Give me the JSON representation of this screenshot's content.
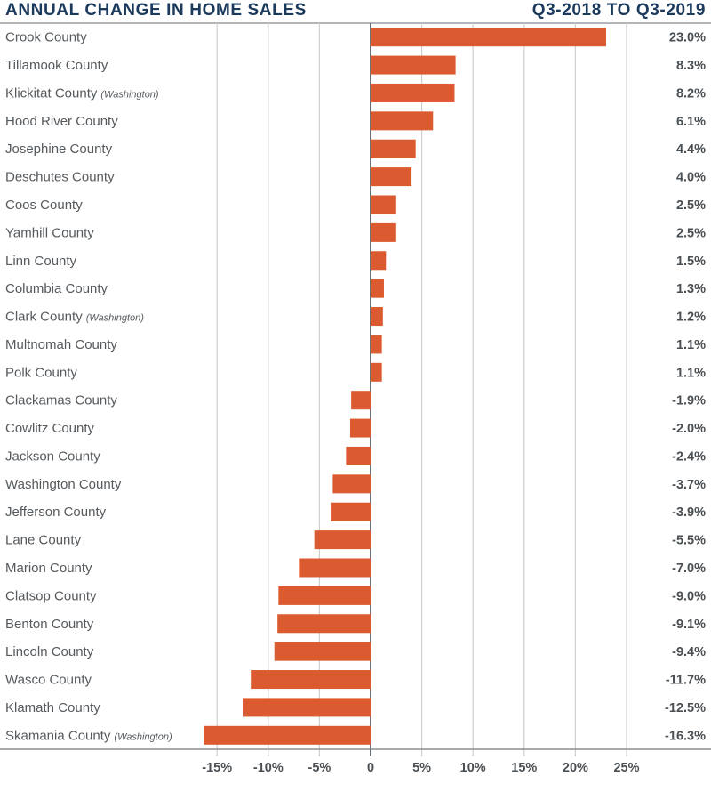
{
  "header": {
    "title": "ANNUAL CHANGE IN HOME SALES",
    "period": "Q3-2018 TO Q3-2019"
  },
  "colors": {
    "bar": "#db5a2f",
    "title": "#1b3a5c",
    "grid": "#cfcfcf",
    "axis": "#5c6166",
    "text": "#555a5e"
  },
  "chart_data": {
    "type": "bar",
    "orientation": "horizontal",
    "title": "ANNUAL CHANGE IN HOME SALES",
    "subtitle": "Q3-2018 TO Q3-2019",
    "xlabel": "",
    "ylabel": "",
    "xlim": [
      -20,
      27
    ],
    "x_ticks": [
      -15,
      -10,
      -5,
      0,
      5,
      10,
      15,
      20,
      25
    ],
    "x_tick_labels": [
      "-15%",
      "-10%",
      "-5%",
      "0",
      "5%",
      "10%",
      "15%",
      "20%",
      "25%"
    ],
    "grid": true,
    "legend": "none",
    "categories": [
      {
        "name": "Crook County",
        "note": ""
      },
      {
        "name": "Tillamook County",
        "note": ""
      },
      {
        "name": "Klickitat County",
        "note": "(Washington)"
      },
      {
        "name": "Hood River County",
        "note": ""
      },
      {
        "name": "Josephine County",
        "note": ""
      },
      {
        "name": "Deschutes County",
        "note": ""
      },
      {
        "name": "Coos County",
        "note": ""
      },
      {
        "name": "Yamhill County",
        "note": ""
      },
      {
        "name": "Linn County",
        "note": ""
      },
      {
        "name": "Columbia County",
        "note": ""
      },
      {
        "name": "Clark County",
        "note": "(Washington)"
      },
      {
        "name": "Multnomah County",
        "note": ""
      },
      {
        "name": "Polk County",
        "note": ""
      },
      {
        "name": "Clackamas County",
        "note": ""
      },
      {
        "name": "Cowlitz County",
        "note": ""
      },
      {
        "name": "Jackson County",
        "note": ""
      },
      {
        "name": "Washington County",
        "note": ""
      },
      {
        "name": "Jefferson County",
        "note": ""
      },
      {
        "name": "Lane County",
        "note": ""
      },
      {
        "name": "Marion County",
        "note": ""
      },
      {
        "name": "Clatsop County",
        "note": ""
      },
      {
        "name": "Benton County",
        "note": ""
      },
      {
        "name": "Lincoln County",
        "note": ""
      },
      {
        "name": "Wasco County",
        "note": ""
      },
      {
        "name": "Klamath County",
        "note": ""
      },
      {
        "name": "Skamania County",
        "note": "(Washington)"
      }
    ],
    "values": [
      23.0,
      8.3,
      8.2,
      6.1,
      4.4,
      4.0,
      2.5,
      2.5,
      1.5,
      1.3,
      1.2,
      1.1,
      1.1,
      -1.9,
      -2.0,
      -2.4,
      -3.7,
      -3.9,
      -5.5,
      -7.0,
      -9.0,
      -9.1,
      -9.4,
      -11.7,
      -12.5,
      -16.3
    ],
    "value_labels": [
      "23.0%",
      "8.3%",
      "8.2%",
      "6.1%",
      "4.4%",
      "4.0%",
      "2.5%",
      "2.5%",
      "1.5%",
      "1.3%",
      "1.2%",
      "1.1%",
      "1.1%",
      "-1.9%",
      "-2.0%",
      "-2.4%",
      "-3.7%",
      "-3.9%",
      "-5.5%",
      "-7.0%",
      "-9.0%",
      "-9.1%",
      "-9.4%",
      "-11.7%",
      "-12.5%",
      "-16.3%"
    ]
  }
}
